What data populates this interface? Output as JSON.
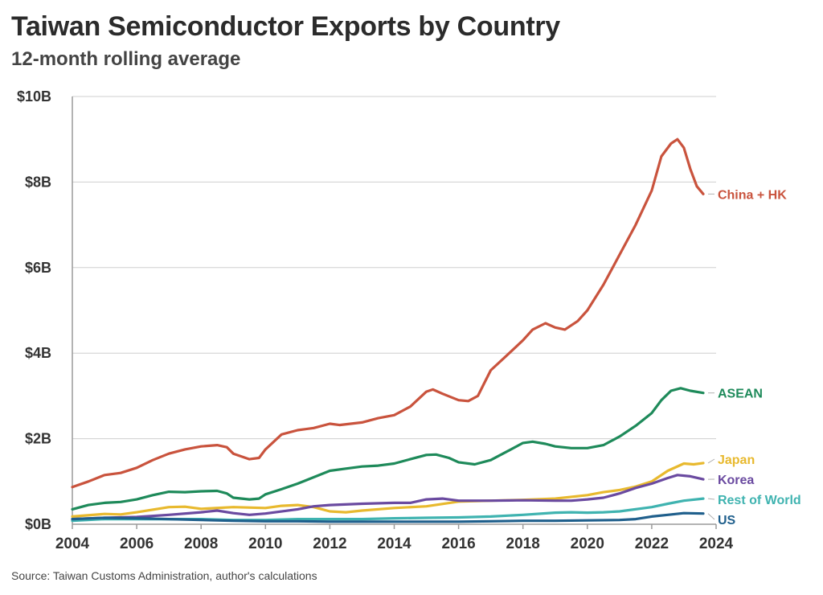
{
  "header": {
    "title": "Taiwan Semiconductor Exports by Country",
    "subtitle": "12-month rolling average"
  },
  "footer": {
    "source": "Source: Taiwan Customs Administration, author's calculations"
  },
  "chart_data": {
    "type": "line",
    "title": "Taiwan Semiconductor Exports by Country",
    "subtitle": "12-month rolling average",
    "xlabel": "",
    "ylabel": "",
    "xlim": [
      2004,
      2024
    ],
    "ylim": [
      0,
      10
    ],
    "x_ticks": [
      2004,
      2006,
      2008,
      2010,
      2012,
      2014,
      2016,
      2018,
      2020,
      2022,
      2024
    ],
    "x_tick_labels": [
      "2004",
      "2006",
      "2008",
      "2010",
      "2012",
      "2014",
      "2016",
      "2018",
      "2020",
      "2022",
      "2024"
    ],
    "y_ticks": [
      0,
      2,
      4,
      6,
      8,
      10
    ],
    "y_tick_labels": [
      "$0B",
      "$2B",
      "$4B",
      "$6B",
      "$8B",
      "$10B"
    ],
    "grid": "horizontal",
    "legend": "direct labels at right end of lines",
    "series": [
      {
        "name": "China + HK",
        "color": "#c9533d",
        "points": [
          [
            2004,
            0.87
          ],
          [
            2004.5,
            1.0
          ],
          [
            2005,
            1.15
          ],
          [
            2005.5,
            1.2
          ],
          [
            2006,
            1.32
          ],
          [
            2006.5,
            1.5
          ],
          [
            2007,
            1.65
          ],
          [
            2007.5,
            1.75
          ],
          [
            2008,
            1.82
          ],
          [
            2008.5,
            1.85
          ],
          [
            2008.8,
            1.8
          ],
          [
            2009,
            1.65
          ],
          [
            2009.5,
            1.52
          ],
          [
            2009.8,
            1.55
          ],
          [
            2010,
            1.75
          ],
          [
            2010.5,
            2.1
          ],
          [
            2011,
            2.2
          ],
          [
            2011.5,
            2.25
          ],
          [
            2012,
            2.35
          ],
          [
            2012.3,
            2.32
          ],
          [
            2013,
            2.38
          ],
          [
            2013.5,
            2.48
          ],
          [
            2014,
            2.55
          ],
          [
            2014.5,
            2.75
          ],
          [
            2015,
            3.1
          ],
          [
            2015.2,
            3.15
          ],
          [
            2015.5,
            3.05
          ],
          [
            2016,
            2.9
          ],
          [
            2016.3,
            2.88
          ],
          [
            2016.6,
            3.0
          ],
          [
            2016.8,
            3.3
          ],
          [
            2017,
            3.6
          ],
          [
            2017.5,
            3.95
          ],
          [
            2018,
            4.3
          ],
          [
            2018.3,
            4.55
          ],
          [
            2018.7,
            4.7
          ],
          [
            2019,
            4.6
          ],
          [
            2019.3,
            4.55
          ],
          [
            2019.7,
            4.75
          ],
          [
            2020,
            5.0
          ],
          [
            2020.5,
            5.6
          ],
          [
            2021,
            6.3
          ],
          [
            2021.5,
            7.0
          ],
          [
            2022,
            7.8
          ],
          [
            2022.3,
            8.6
          ],
          [
            2022.6,
            8.9
          ],
          [
            2022.8,
            9.0
          ],
          [
            2023,
            8.8
          ],
          [
            2023.2,
            8.3
          ],
          [
            2023.4,
            7.9
          ],
          [
            2023.6,
            7.72
          ]
        ]
      },
      {
        "name": "ASEAN",
        "color": "#1e8a5a",
        "points": [
          [
            2004,
            0.35
          ],
          [
            2004.5,
            0.45
          ],
          [
            2005,
            0.5
          ],
          [
            2005.5,
            0.52
          ],
          [
            2006,
            0.58
          ],
          [
            2006.5,
            0.68
          ],
          [
            2007,
            0.76
          ],
          [
            2007.5,
            0.75
          ],
          [
            2008,
            0.77
          ],
          [
            2008.5,
            0.78
          ],
          [
            2008.8,
            0.72
          ],
          [
            2009,
            0.62
          ],
          [
            2009.5,
            0.58
          ],
          [
            2009.8,
            0.6
          ],
          [
            2010,
            0.7
          ],
          [
            2010.5,
            0.82
          ],
          [
            2011,
            0.95
          ],
          [
            2011.5,
            1.1
          ],
          [
            2012,
            1.25
          ],
          [
            2012.5,
            1.3
          ],
          [
            2013,
            1.35
          ],
          [
            2013.5,
            1.37
          ],
          [
            2014,
            1.42
          ],
          [
            2014.5,
            1.52
          ],
          [
            2015,
            1.62
          ],
          [
            2015.3,
            1.63
          ],
          [
            2015.7,
            1.55
          ],
          [
            2016,
            1.45
          ],
          [
            2016.5,
            1.4
          ],
          [
            2017,
            1.5
          ],
          [
            2017.5,
            1.7
          ],
          [
            2018,
            1.9
          ],
          [
            2018.3,
            1.93
          ],
          [
            2018.7,
            1.88
          ],
          [
            2019,
            1.82
          ],
          [
            2019.5,
            1.78
          ],
          [
            2020,
            1.78
          ],
          [
            2020.5,
            1.85
          ],
          [
            2021,
            2.05
          ],
          [
            2021.5,
            2.3
          ],
          [
            2022,
            2.6
          ],
          [
            2022.3,
            2.9
          ],
          [
            2022.6,
            3.12
          ],
          [
            2022.9,
            3.18
          ],
          [
            2023.2,
            3.12
          ],
          [
            2023.6,
            3.07
          ]
        ]
      },
      {
        "name": "Japan",
        "color": "#e8b92e",
        "points": [
          [
            2004,
            0.18
          ],
          [
            2005,
            0.24
          ],
          [
            2005.5,
            0.23
          ],
          [
            2006,
            0.28
          ],
          [
            2007,
            0.4
          ],
          [
            2007.5,
            0.41
          ],
          [
            2008,
            0.36
          ],
          [
            2009,
            0.4
          ],
          [
            2010,
            0.38
          ],
          [
            2010.5,
            0.43
          ],
          [
            2011,
            0.45
          ],
          [
            2011.5,
            0.4
          ],
          [
            2012,
            0.3
          ],
          [
            2012.5,
            0.28
          ],
          [
            2013,
            0.32
          ],
          [
            2014,
            0.38
          ],
          [
            2015,
            0.42
          ],
          [
            2016,
            0.53
          ],
          [
            2017,
            0.55
          ],
          [
            2018,
            0.57
          ],
          [
            2019,
            0.6
          ],
          [
            2020,
            0.68
          ],
          [
            2020.5,
            0.75
          ],
          [
            2021,
            0.8
          ],
          [
            2021.5,
            0.88
          ],
          [
            2022,
            1.0
          ],
          [
            2022.5,
            1.25
          ],
          [
            2023,
            1.42
          ],
          [
            2023.3,
            1.4
          ],
          [
            2023.6,
            1.43
          ]
        ]
      },
      {
        "name": "Korea",
        "color": "#6a4aa0",
        "points": [
          [
            2004,
            0.12
          ],
          [
            2005,
            0.15
          ],
          [
            2006,
            0.17
          ],
          [
            2007,
            0.22
          ],
          [
            2008,
            0.28
          ],
          [
            2008.5,
            0.32
          ],
          [
            2009,
            0.26
          ],
          [
            2009.5,
            0.22
          ],
          [
            2010,
            0.25
          ],
          [
            2011,
            0.35
          ],
          [
            2011.5,
            0.42
          ],
          [
            2012,
            0.45
          ],
          [
            2013,
            0.48
          ],
          [
            2014,
            0.5
          ],
          [
            2014.5,
            0.5
          ],
          [
            2015,
            0.58
          ],
          [
            2015.5,
            0.6
          ],
          [
            2016,
            0.55
          ],
          [
            2017,
            0.55
          ],
          [
            2018,
            0.56
          ],
          [
            2019,
            0.55
          ],
          [
            2019.5,
            0.55
          ],
          [
            2020,
            0.58
          ],
          [
            2020.5,
            0.62
          ],
          [
            2021,
            0.72
          ],
          [
            2021.5,
            0.85
          ],
          [
            2022,
            0.95
          ],
          [
            2022.5,
            1.08
          ],
          [
            2022.8,
            1.15
          ],
          [
            2023.2,
            1.12
          ],
          [
            2023.6,
            1.05
          ]
        ]
      },
      {
        "name": "Rest of World",
        "color": "#3fb3b0",
        "points": [
          [
            2004,
            0.08
          ],
          [
            2005,
            0.12
          ],
          [
            2006,
            0.12
          ],
          [
            2007,
            0.12
          ],
          [
            2008,
            0.12
          ],
          [
            2009,
            0.1
          ],
          [
            2010,
            0.1
          ],
          [
            2011,
            0.12
          ],
          [
            2012,
            0.12
          ],
          [
            2013,
            0.12
          ],
          [
            2014,
            0.14
          ],
          [
            2015,
            0.15
          ],
          [
            2016,
            0.16
          ],
          [
            2017,
            0.18
          ],
          [
            2018,
            0.22
          ],
          [
            2019,
            0.27
          ],
          [
            2019.5,
            0.28
          ],
          [
            2020,
            0.27
          ],
          [
            2020.5,
            0.28
          ],
          [
            2021,
            0.3
          ],
          [
            2022,
            0.4
          ],
          [
            2022.5,
            0.48
          ],
          [
            2023,
            0.55
          ],
          [
            2023.6,
            0.6
          ]
        ]
      },
      {
        "name": "US",
        "color": "#1f5f8c",
        "points": [
          [
            2004,
            0.12
          ],
          [
            2005,
            0.15
          ],
          [
            2006,
            0.14
          ],
          [
            2007,
            0.12
          ],
          [
            2008,
            0.1
          ],
          [
            2009,
            0.08
          ],
          [
            2010,
            0.07
          ],
          [
            2011,
            0.07
          ],
          [
            2012,
            0.06
          ],
          [
            2013,
            0.06
          ],
          [
            2014,
            0.06
          ],
          [
            2015,
            0.06
          ],
          [
            2016,
            0.06
          ],
          [
            2017,
            0.07
          ],
          [
            2018,
            0.08
          ],
          [
            2019,
            0.08
          ],
          [
            2020,
            0.09
          ],
          [
            2021,
            0.1
          ],
          [
            2021.5,
            0.12
          ],
          [
            2022,
            0.18
          ],
          [
            2022.5,
            0.22
          ],
          [
            2023,
            0.26
          ],
          [
            2023.6,
            0.25
          ]
        ]
      }
    ]
  }
}
